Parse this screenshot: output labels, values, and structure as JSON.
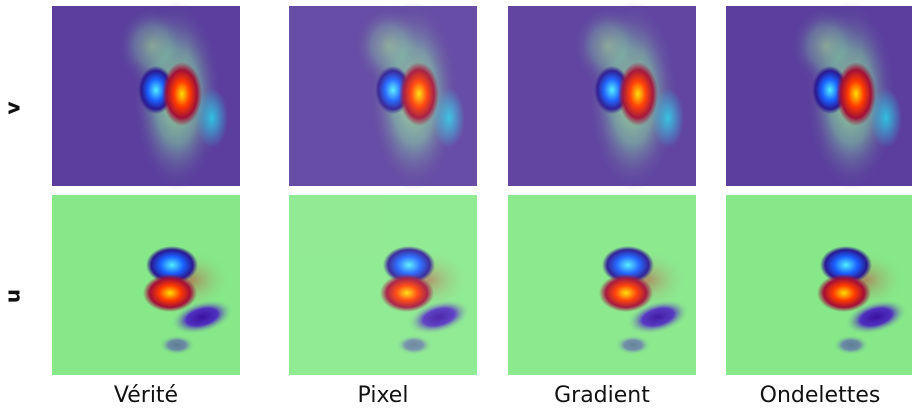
{
  "row_labels": [
    "v",
    "u"
  ],
  "column_labels": [
    "Vérité",
    "Pixel",
    "Gradient",
    "Ondelettes"
  ]
}
